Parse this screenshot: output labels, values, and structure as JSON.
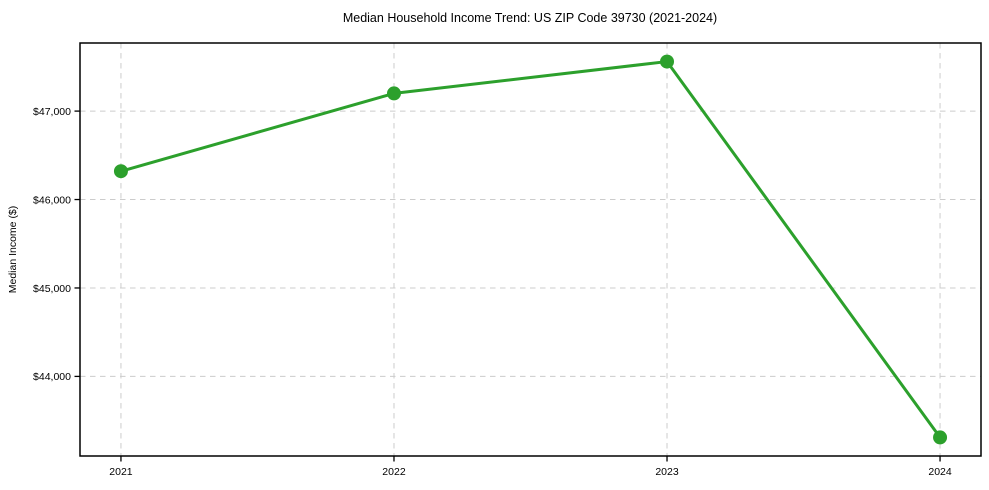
{
  "chart_data": {
    "type": "line",
    "title": "Median Household Income Trend: US ZIP Code 39730 (2021-2024)",
    "xlabel": "",
    "ylabel": "Median Income ($)",
    "x": [
      2021,
      2022,
      2023,
      2024
    ],
    "x_tick_labels": [
      "2021",
      "2022",
      "2023",
      "2024"
    ],
    "series": [
      {
        "name": "Median Household Income",
        "values": [
          46320,
          47200,
          47560,
          43310
        ],
        "color": "#2ca02c"
      }
    ],
    "y_ticks": [
      44000,
      45000,
      46000,
      47000
    ],
    "y_tick_labels": [
      "$44,000",
      "$45,000",
      "$46,000",
      "$47,000"
    ],
    "xlim": [
      2020.85,
      2024.15
    ],
    "ylim": [
      43100,
      47770
    ],
    "grid": true,
    "grid_style": "dashed",
    "legend": false,
    "colors": {
      "line": "#2ca02c",
      "grid": "#cccccc",
      "spine": "#000000",
      "text": "#000000",
      "background": "#ffffff"
    }
  }
}
